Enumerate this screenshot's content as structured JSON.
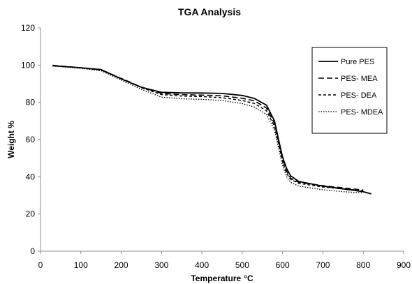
{
  "chart_data": {
    "type": "line",
    "title": "TGA Analysis",
    "xlabel": "Temperature",
    "xlabel_unit": "°C",
    "ylabel": "Weight %",
    "xlim": [
      0,
      900
    ],
    "ylim": [
      0,
      120
    ],
    "xticks": [
      0,
      100,
      200,
      300,
      400,
      500,
      600,
      700,
      800,
      900
    ],
    "yticks": [
      0,
      20,
      40,
      60,
      80,
      100,
      120
    ],
    "grid": false,
    "legend_position": "top-right",
    "series": [
      {
        "name": "Pure PES",
        "dash": "solid",
        "points": [
          [
            30,
            99.7
          ],
          [
            100,
            98.6
          ],
          [
            150,
            97.6
          ],
          [
            200,
            92.6
          ],
          [
            250,
            88.1
          ],
          [
            300,
            85.4
          ],
          [
            350,
            85.1
          ],
          [
            400,
            85.0
          ],
          [
            450,
            84.8
          ],
          [
            500,
            83.7
          ],
          [
            530,
            82.1
          ],
          [
            560,
            78.5
          ],
          [
            580,
            70.0
          ],
          [
            590,
            60.0
          ],
          [
            600,
            50.5
          ],
          [
            610,
            44.5
          ],
          [
            620,
            40.5
          ],
          [
            640,
            37.5
          ],
          [
            700,
            35.0
          ],
          [
            750,
            33.5
          ],
          [
            800,
            32.0
          ],
          [
            820,
            30.8
          ]
        ]
      },
      {
        "name": "PES- MEA",
        "dash": "long-dash",
        "points": [
          [
            30,
            99.9
          ],
          [
            100,
            98.6
          ],
          [
            150,
            97.5
          ],
          [
            200,
            92.9
          ],
          [
            250,
            88.2
          ],
          [
            300,
            84.8
          ],
          [
            350,
            84.1
          ],
          [
            400,
            83.9
          ],
          [
            450,
            83.5
          ],
          [
            500,
            82.2
          ],
          [
            530,
            80.8
          ],
          [
            560,
            77.0
          ],
          [
            580,
            68.5
          ],
          [
            590,
            59.0
          ],
          [
            600,
            49.5
          ],
          [
            610,
            43.0
          ],
          [
            620,
            39.2
          ],
          [
            640,
            37.0
          ],
          [
            700,
            35.2
          ],
          [
            750,
            34.0
          ],
          [
            800,
            32.9
          ]
        ]
      },
      {
        "name": "PES- DEA",
        "dash": "short-dash",
        "points": [
          [
            30,
            99.7
          ],
          [
            100,
            98.5
          ],
          [
            150,
            97.3
          ],
          [
            200,
            92.7
          ],
          [
            250,
            87.9
          ],
          [
            300,
            84.2
          ],
          [
            350,
            83.4
          ],
          [
            400,
            83.1
          ],
          [
            450,
            82.5
          ],
          [
            500,
            81.0
          ],
          [
            530,
            79.4
          ],
          [
            560,
            75.5
          ],
          [
            580,
            67.0
          ],
          [
            590,
            57.5
          ],
          [
            600,
            48.0
          ],
          [
            610,
            41.8
          ],
          [
            620,
            38.6
          ],
          [
            640,
            36.5
          ],
          [
            700,
            34.5
          ],
          [
            750,
            33.5
          ],
          [
            800,
            32.5
          ]
        ]
      },
      {
        "name": "PES- MDEA",
        "dash": "dotted",
        "points": [
          [
            30,
            99.5
          ],
          [
            100,
            98.3
          ],
          [
            150,
            97.0
          ],
          [
            200,
            92.0
          ],
          [
            250,
            87.0
          ],
          [
            300,
            82.8
          ],
          [
            350,
            81.9
          ],
          [
            400,
            81.6
          ],
          [
            450,
            81.0
          ],
          [
            500,
            79.3
          ],
          [
            530,
            77.5
          ],
          [
            560,
            73.5
          ],
          [
            580,
            65.0
          ],
          [
            590,
            55.5
          ],
          [
            600,
            46.0
          ],
          [
            610,
            40.0
          ],
          [
            620,
            37.0
          ],
          [
            640,
            35.0
          ],
          [
            700,
            33.0
          ],
          [
            750,
            32.0
          ],
          [
            800,
            31.3
          ]
        ]
      }
    ]
  }
}
